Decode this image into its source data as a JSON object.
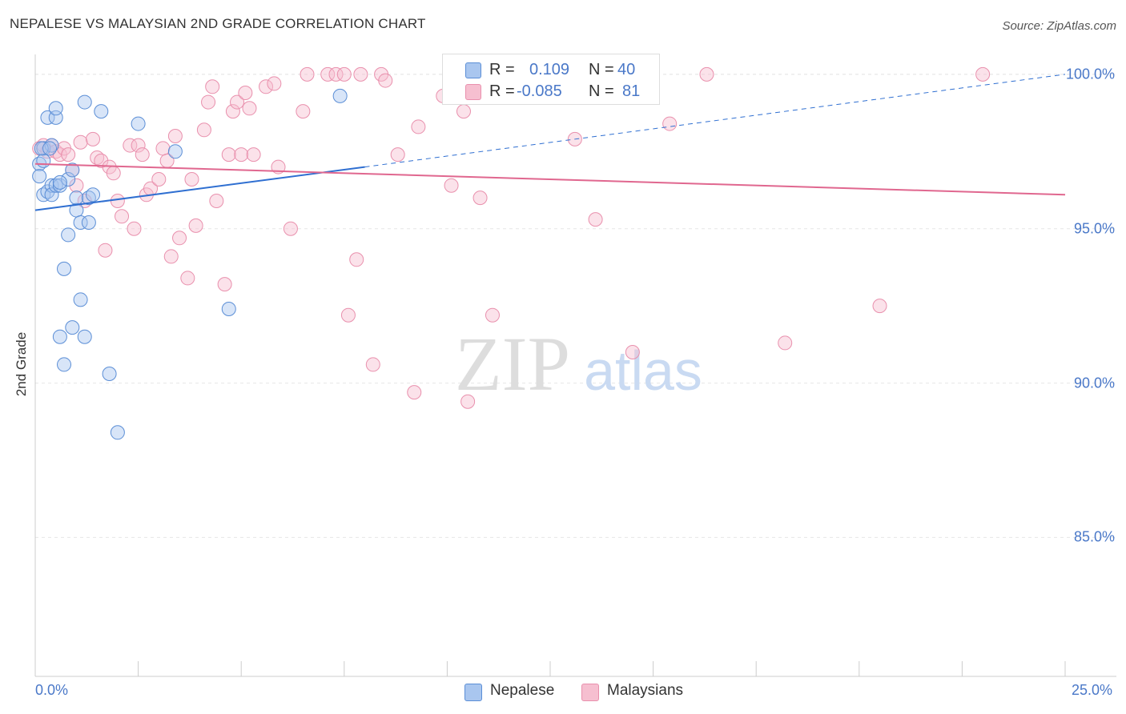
{
  "header": {
    "title": "NEPALESE VS MALAYSIAN 2ND GRADE CORRELATION CHART",
    "source": "Source: ZipAtlas.com"
  },
  "watermark": {
    "zip": "ZIP",
    "atlas": "atlas"
  },
  "legend": {
    "r_label": "R =",
    "n_label": "N =",
    "nepalese": {
      "r": "0.109",
      "n": "40"
    },
    "malaysians": {
      "r": "-0.085",
      "n": "81"
    }
  },
  "colors": {
    "nepalese_fill": "#a9c6ef",
    "nepalese_stroke": "#5b8ed6",
    "nepalese_line": "#2f6fd1",
    "malaysians_fill": "#f6bfd0",
    "malaysians_stroke": "#e990ad",
    "malaysians_line": "#e0678f",
    "tick_text": "#4a78c8"
  },
  "chart_data": {
    "type": "scatter",
    "title": "NEPALESE VS MALAYSIAN 2ND GRADE CORRELATION CHART",
    "xlabel": "",
    "ylabel": "2nd Grade",
    "xlim": [
      0,
      25
    ],
    "ylim": [
      80.5,
      100.8
    ],
    "x_tick_labels": [
      "0.0%",
      "25.0%"
    ],
    "y_ticks": [
      {
        "value": 85,
        "label": "85.0%"
      },
      {
        "value": 90,
        "label": "90.0%"
      },
      {
        "value": 95,
        "label": "95.0%"
      },
      {
        "value": 100,
        "label": "100.0%"
      }
    ],
    "series": [
      {
        "name": "Nepalese",
        "r": 0.109,
        "n": 40,
        "trend": {
          "x0": 0,
          "y0": 95.6,
          "x1": 8.0,
          "y1": 97.0,
          "dash_to_x": 25,
          "dash_to_y": 100.0
        },
        "points": [
          [
            0.1,
            97.1
          ],
          [
            0.1,
            96.7
          ],
          [
            0.2,
            97.6
          ],
          [
            0.2,
            97.2
          ],
          [
            0.2,
            96.1
          ],
          [
            0.3,
            98.6
          ],
          [
            0.3,
            96.2
          ],
          [
            0.4,
            96.4
          ],
          [
            0.4,
            97.7
          ],
          [
            0.4,
            96.1
          ],
          [
            0.5,
            98.6
          ],
          [
            0.5,
            98.9
          ],
          [
            0.5,
            96.4
          ],
          [
            0.6,
            96.4
          ],
          [
            0.6,
            91.5
          ],
          [
            0.7,
            93.7
          ],
          [
            0.7,
            90.6
          ],
          [
            0.8,
            96.6
          ],
          [
            0.8,
            94.8
          ],
          [
            0.9,
            96.9
          ],
          [
            0.9,
            91.8
          ],
          [
            1.0,
            96.0
          ],
          [
            1.0,
            95.6
          ],
          [
            1.1,
            95.2
          ],
          [
            1.1,
            92.7
          ],
          [
            1.2,
            99.1
          ],
          [
            1.2,
            91.5
          ],
          [
            1.3,
            96.0
          ],
          [
            1.3,
            95.2
          ],
          [
            1.4,
            96.1
          ],
          [
            1.6,
            98.8
          ],
          [
            1.8,
            90.3
          ],
          [
            2.0,
            88.4
          ],
          [
            2.5,
            98.4
          ],
          [
            3.4,
            97.5
          ],
          [
            4.7,
            92.4
          ],
          [
            7.4,
            99.3
          ],
          [
            0.15,
            97.6
          ],
          [
            0.35,
            97.6
          ],
          [
            0.6,
            96.5
          ]
        ]
      },
      {
        "name": "Malaysians",
        "r": -0.085,
        "n": 81,
        "trend": {
          "x0": 0,
          "y0": 97.1,
          "x1": 25,
          "y1": 96.1
        },
        "points": [
          [
            0.1,
            97.6
          ],
          [
            0.2,
            97.7
          ],
          [
            0.3,
            97.5
          ],
          [
            0.4,
            97.7
          ],
          [
            0.5,
            97.5
          ],
          [
            0.6,
            97.4
          ],
          [
            0.7,
            97.6
          ],
          [
            0.8,
            97.4
          ],
          [
            0.9,
            96.9
          ],
          [
            1.0,
            96.4
          ],
          [
            1.1,
            97.8
          ],
          [
            1.2,
            95.9
          ],
          [
            1.4,
            97.9
          ],
          [
            1.5,
            97.3
          ],
          [
            1.6,
            97.2
          ],
          [
            1.7,
            94.3
          ],
          [
            1.8,
            97.0
          ],
          [
            1.9,
            96.8
          ],
          [
            2.0,
            95.9
          ],
          [
            2.1,
            95.4
          ],
          [
            2.3,
            97.7
          ],
          [
            2.4,
            95.0
          ],
          [
            2.5,
            97.7
          ],
          [
            2.6,
            97.4
          ],
          [
            2.7,
            96.1
          ],
          [
            2.8,
            96.3
          ],
          [
            3.0,
            96.6
          ],
          [
            3.1,
            97.6
          ],
          [
            3.2,
            97.2
          ],
          [
            3.3,
            94.1
          ],
          [
            3.4,
            98.0
          ],
          [
            3.5,
            94.7
          ],
          [
            3.7,
            93.4
          ],
          [
            3.8,
            96.6
          ],
          [
            3.9,
            95.1
          ],
          [
            4.1,
            98.2
          ],
          [
            4.2,
            99.1
          ],
          [
            4.3,
            99.6
          ],
          [
            4.4,
            95.9
          ],
          [
            4.6,
            93.2
          ],
          [
            4.7,
            97.4
          ],
          [
            4.8,
            98.8
          ],
          [
            4.9,
            99.1
          ],
          [
            5.0,
            97.4
          ],
          [
            5.1,
            99.4
          ],
          [
            5.2,
            98.9
          ],
          [
            5.3,
            97.4
          ],
          [
            5.6,
            99.6
          ],
          [
            5.8,
            99.7
          ],
          [
            5.9,
            97.0
          ],
          [
            6.2,
            95.0
          ],
          [
            6.5,
            98.8
          ],
          [
            6.6,
            100.0
          ],
          [
            7.1,
            100.0
          ],
          [
            7.3,
            100.0
          ],
          [
            7.5,
            100.0
          ],
          [
            7.6,
            92.2
          ],
          [
            7.8,
            94.0
          ],
          [
            7.9,
            100.0
          ],
          [
            8.2,
            90.6
          ],
          [
            8.4,
            100.0
          ],
          [
            8.5,
            99.8
          ],
          [
            8.8,
            97.4
          ],
          [
            9.2,
            89.7
          ],
          [
            9.3,
            98.3
          ],
          [
            9.9,
            99.3
          ],
          [
            10.1,
            96.4
          ],
          [
            10.2,
            99.8
          ],
          [
            10.4,
            98.8
          ],
          [
            10.5,
            89.4
          ],
          [
            10.8,
            96.0
          ],
          [
            11.1,
            92.2
          ],
          [
            11.4,
            100.0
          ],
          [
            13.1,
            97.9
          ],
          [
            13.6,
            95.3
          ],
          [
            13.9,
            100.0
          ],
          [
            14.5,
            91.0
          ],
          [
            15.4,
            98.4
          ],
          [
            16.3,
            100.0
          ],
          [
            18.2,
            91.3
          ],
          [
            20.5,
            92.5
          ],
          [
            23.0,
            100.0
          ]
        ]
      }
    ]
  },
  "bottom_legend": {
    "nepalese_label": "Nepalese",
    "malaysians_label": "Malaysians"
  }
}
